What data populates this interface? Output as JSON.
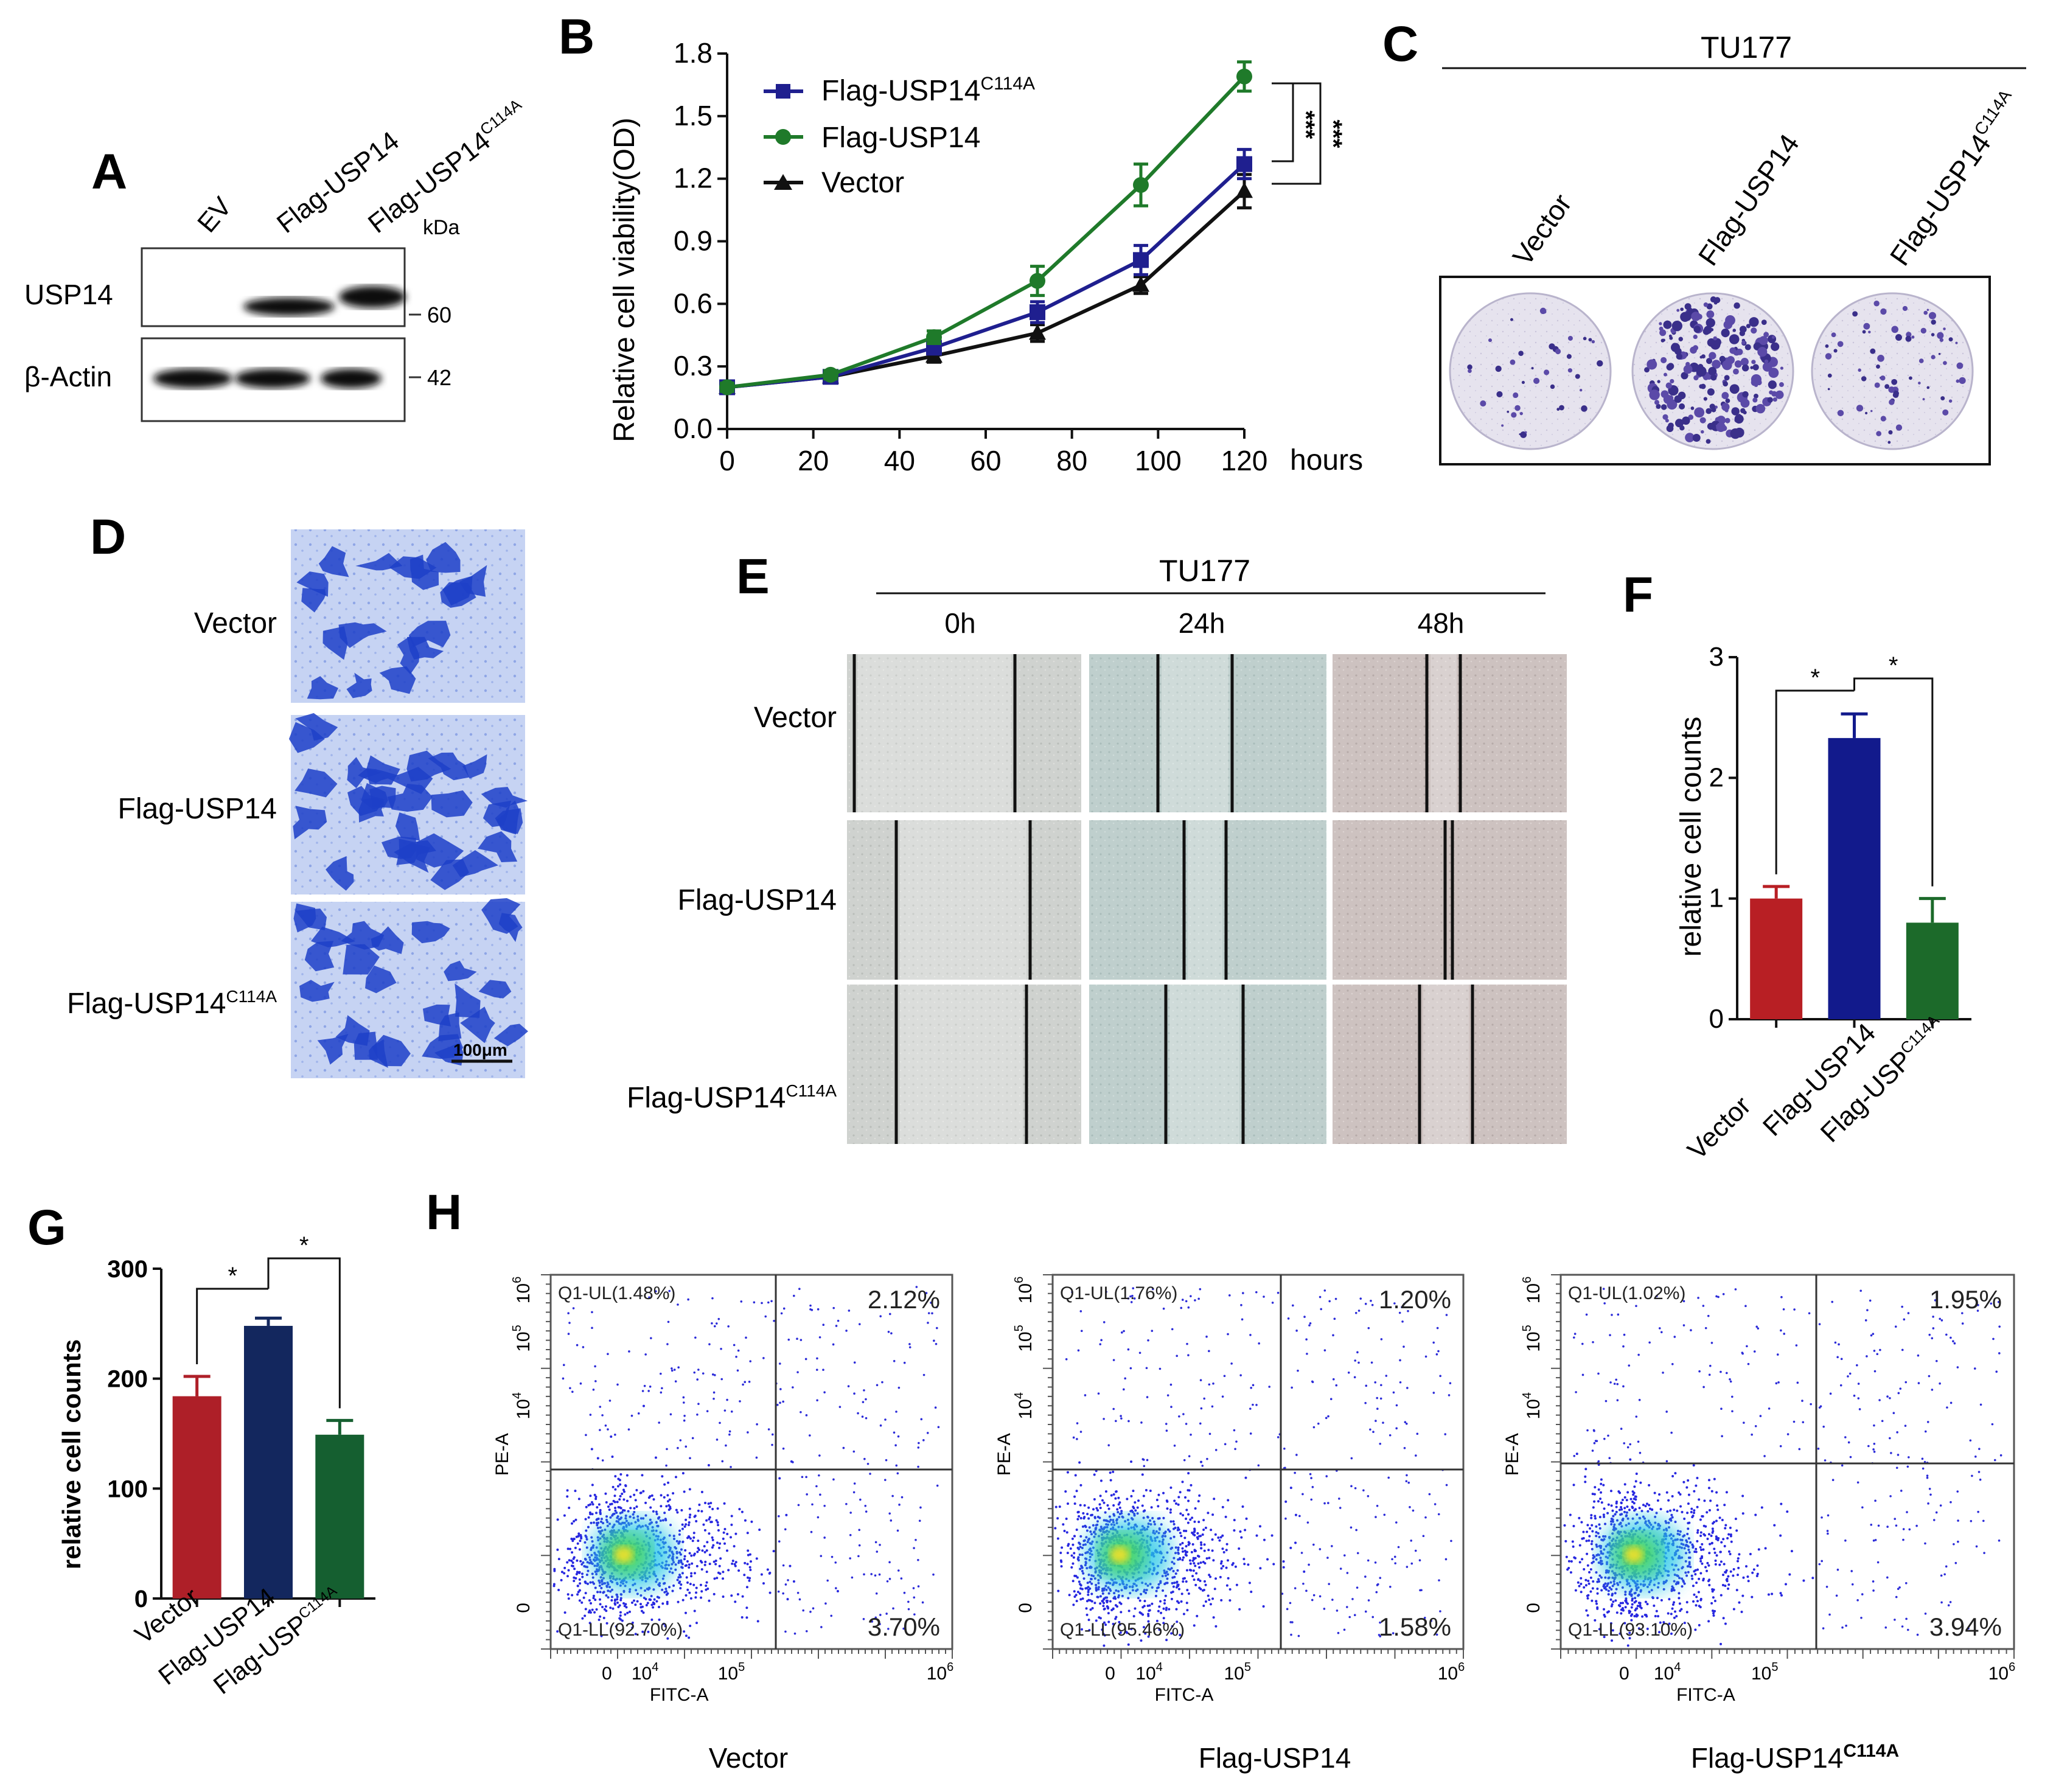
{
  "panels": {
    "A": {
      "letter": "A",
      "lanes": [
        "EV",
        "Flag-USP14",
        "Flag-USP14",
        "C114A"
      ],
      "kda_label": "kDa",
      "rows": [
        {
          "label": "USP14",
          "marker": "60"
        },
        {
          "label": "β-Actin",
          "marker": "42"
        }
      ]
    },
    "B": {
      "letter": "B",
      "x_unit": "hours",
      "significance": "***",
      "legend": {
        "mut_base": "Flag-USP14",
        "mut_sup": "C114A",
        "wt": "Flag-USP14",
        "vector": "Vector"
      }
    },
    "C": {
      "letter": "C",
      "cell_line": "TU177",
      "columns": [
        "Vector",
        "Flag-USP14",
        "Flag-USP14",
        "C114A"
      ]
    },
    "D": {
      "letter": "D",
      "rows": [
        "Vector",
        "Flag-USP14",
        "Flag-USP14",
        "C114A"
      ],
      "scale_bar": "100μm"
    },
    "E": {
      "letter": "E",
      "cell_line": "TU177",
      "timepoints": [
        "0h",
        "24h",
        "48h"
      ],
      "rows": [
        "Vector",
        "Flag-USP14",
        "Flag-USP14",
        "C114A"
      ]
    },
    "F": {
      "letter": "F",
      "ylabel": "relative cell counts",
      "star": "*",
      "categories": [
        "Vector",
        "Flag-USP14",
        "Flag-USP",
        "C114A"
      ]
    },
    "G": {
      "letter": "G",
      "ylabel": "relative cell counts",
      "star": "*",
      "categories": [
        "Vector",
        "Flag-USP14",
        "Flag-USP",
        "C114A"
      ]
    },
    "H": {
      "letter": "H",
      "x_axis": "FITC-A",
      "y_axis": "PE-A",
      "plots": [
        {
          "title": "Vector",
          "title_sup": "",
          "ul": "Q1-UL(1.48%)",
          "ur": "2.12%",
          "ll": "Q1-LL(92.70%)",
          "lr": "3.70%"
        },
        {
          "title": "Flag-USP14",
          "title_sup": "",
          "ul": "Q1-UL(1.76%)",
          "ur": "1.20%",
          "ll": "Q1-LL(95.46%)",
          "lr": "1.58%"
        },
        {
          "title": "Flag-USP14",
          "title_sup": "C114A",
          "ul": "Q1-UL(1.02%)",
          "ur": "1.95%",
          "ll": "Q1-LL(93.10%)",
          "lr": "3.94%"
        }
      ]
    }
  },
  "chart_data": [
    {
      "panel": "B",
      "type": "line",
      "title": "",
      "xlabel": "hours",
      "ylabel": "Relative cell viability(OD)",
      "x": [
        0,
        24,
        48,
        72,
        96,
        120
      ],
      "xticks": [
        0,
        20,
        40,
        60,
        80,
        100,
        120
      ],
      "yticks": [
        "0.0",
        "0.3",
        "0.6",
        "0.9",
        "1.2",
        "1.5",
        "1.8"
      ],
      "xlim": [
        0,
        120
      ],
      "ylim": [
        0,
        1.8
      ],
      "series": [
        {
          "name": "Flag-USP14 C114A",
          "color": "#1f1f8f",
          "marker": "square",
          "values": [
            0.2,
            0.25,
            0.39,
            0.56,
            0.81,
            1.27
          ],
          "errors": [
            0.02,
            0.02,
            0.03,
            0.05,
            0.07,
            0.07
          ]
        },
        {
          "name": "Flag-USP14",
          "color": "#1f7a2a",
          "marker": "circle",
          "values": [
            0.2,
            0.26,
            0.44,
            0.71,
            1.17,
            1.69
          ],
          "errors": [
            0.02,
            0.02,
            0.03,
            0.07,
            0.1,
            0.07
          ]
        },
        {
          "name": "Vector",
          "color": "#111111",
          "marker": "triangle",
          "values": [
            0.2,
            0.25,
            0.35,
            0.46,
            0.69,
            1.14
          ],
          "errors": [
            0.02,
            0.02,
            0.03,
            0.04,
            0.04,
            0.08
          ]
        }
      ]
    },
    {
      "panel": "F",
      "type": "bar",
      "ylabel": "relative cell counts",
      "categories": [
        "Vector",
        "Flag-USP14",
        "Flag-USP C114A"
      ],
      "values": [
        1.0,
        2.33,
        0.8
      ],
      "errors": [
        0.1,
        0.2,
        0.2
      ],
      "colors": [
        "#b81f24",
        "#121a8c",
        "#1c6a2a"
      ],
      "ylim": [
        0,
        3
      ],
      "yticks": [
        "0",
        "1",
        "2",
        "3"
      ]
    },
    {
      "panel": "G",
      "type": "bar",
      "ylabel": "relative cell counts",
      "categories": [
        "Vector",
        "Flag-USP14",
        "Flag-USP C114A"
      ],
      "values": [
        184,
        248,
        149
      ],
      "errors": [
        18,
        7,
        13
      ],
      "colors": [
        "#ae1f28",
        "#13275e",
        "#155f30"
      ],
      "ylim": [
        0,
        300
      ],
      "yticks": [
        "0",
        "100",
        "200",
        "300"
      ]
    }
  ]
}
